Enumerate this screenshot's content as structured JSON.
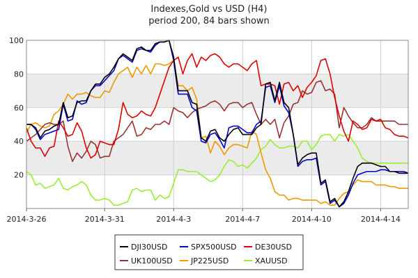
{
  "chart_data": {
    "type": "line",
    "title": "Indexes,Gold vs USD (H4)",
    "subtitle": "period 200, 84 bars shown",
    "ylim": [
      0,
      100
    ],
    "yticks": [
      "20",
      "40",
      "60",
      "80",
      "100"
    ],
    "ytick_values": [
      20,
      40,
      60,
      80,
      100
    ],
    "xticks": [
      {
        "label": "2014-3-26",
        "bar": 0
      },
      {
        "label": "2014-3-31",
        "bar": 17
      },
      {
        "label": "2014-4-3",
        "bar": 32
      },
      {
        "label": "2014-4-7",
        "bar": 47
      },
      {
        "label": "2014-4-10",
        "bar": 62
      },
      {
        "label": "2014-4-14",
        "bar": 77
      }
    ],
    "bars_shown": 84,
    "grid": true,
    "band_color": "#ebebeb",
    "legend_position": "bottom",
    "series": [
      {
        "name": "DJI30USD",
        "color": "#000000",
        "values": [
          50,
          50,
          48,
          42,
          46,
          47,
          49,
          50,
          63,
          54,
          55,
          63,
          64,
          64,
          70,
          74,
          74,
          78,
          80,
          84,
          89,
          92,
          90,
          88,
          95,
          96,
          94,
          94,
          98,
          99,
          99,
          100,
          90,
          70,
          70,
          70,
          63,
          62,
          42,
          40,
          46,
          47,
          42,
          40,
          44,
          47,
          48,
          44,
          44,
          44,
          48,
          50,
          74,
          75,
          64,
          75,
          63,
          60,
          44,
          26,
          30,
          32,
          33,
          33,
          15,
          17,
          4,
          6,
          1,
          4,
          10,
          18,
          25,
          27,
          27,
          27,
          26,
          25,
          25,
          22,
          22,
          21,
          21,
          21
        ]
      },
      {
        "name": "SPX500USD",
        "color": "#0000cc",
        "values": [
          50,
          50,
          47,
          41,
          44,
          45,
          46,
          47,
          62,
          52,
          53,
          64,
          62,
          63,
          70,
          73,
          73,
          76,
          79,
          82,
          89,
          91,
          89,
          87,
          94,
          95,
          94,
          93,
          97,
          99,
          99,
          100,
          88,
          68,
          68,
          68,
          60,
          58,
          40,
          39,
          44,
          45,
          41,
          36,
          48,
          49,
          49,
          47,
          45,
          45,
          50,
          52,
          72,
          73,
          63,
          73,
          61,
          57,
          44,
          25,
          28,
          29,
          29,
          30,
          14,
          16,
          3,
          5,
          1,
          3,
          8,
          15,
          20,
          21,
          22,
          22,
          22,
          23,
          23,
          22,
          22,
          22,
          22,
          21
        ]
      },
      {
        "name": "DE30USD",
        "color": "#dd0000",
        "values": [
          48,
          40,
          36,
          36,
          31,
          36,
          37,
          52,
          48,
          43,
          44,
          51,
          46,
          36,
          30,
          32,
          40,
          39,
          38,
          38,
          47,
          63,
          56,
          54,
          55,
          58,
          56,
          55,
          60,
          68,
          76,
          84,
          88,
          90,
          80,
          88,
          92,
          84,
          90,
          88,
          91,
          92,
          90,
          86,
          84,
          86,
          86,
          84,
          82,
          86,
          88,
          73,
          74,
          74,
          73,
          62,
          74,
          75,
          70,
          73,
          66,
          72,
          75,
          79,
          88,
          89,
          80,
          66,
          55,
          46,
          40,
          52,
          50,
          47,
          48,
          53,
          52,
          53,
          48,
          47,
          44,
          43,
          43,
          42
        ]
      },
      {
        "name": "UK100USD",
        "color": "#993333",
        "values": [
          40,
          42,
          44,
          47,
          50,
          51,
          50,
          50,
          52,
          37,
          28,
          33,
          30,
          34,
          40,
          38,
          30,
          31,
          31,
          40,
          42,
          44,
          48,
          52,
          43,
          44,
          48,
          47,
          50,
          50,
          52,
          50,
          60,
          58,
          57,
          54,
          57,
          59,
          60,
          61,
          63,
          64,
          62,
          58,
          62,
          63,
          63,
          60,
          62,
          63,
          56,
          50,
          53,
          50,
          53,
          42,
          51,
          55,
          62,
          63,
          70,
          68,
          69,
          75,
          76,
          70,
          71,
          68,
          48,
          60,
          55,
          51,
          48,
          48,
          50,
          54,
          52,
          52,
          52,
          52,
          52,
          50,
          50,
          50
        ]
      },
      {
        "name": "JP225USD",
        "color": "#ee9900",
        "values": [
          45,
          50,
          51,
          49,
          48,
          49,
          56,
          58,
          62,
          68,
          65,
          68,
          68,
          69,
          67,
          66,
          66,
          70,
          69,
          75,
          80,
          82,
          84,
          78,
          84,
          80,
          85,
          80,
          86,
          86,
          85,
          86,
          88,
          73,
          73,
          70,
          72,
          65,
          42,
          43,
          33,
          40,
          37,
          32,
          36,
          38,
          38,
          37,
          36,
          46,
          44,
          33,
          23,
          18,
          10,
          8,
          8,
          5,
          6,
          6,
          5,
          5,
          5,
          5,
          3,
          4,
          2,
          2,
          6,
          9,
          10,
          14,
          17,
          16,
          16,
          16,
          14,
          14,
          14,
          13,
          13,
          12,
          12,
          12
        ]
      },
      {
        "name": "XAUUSD",
        "color": "#99ee33",
        "values": [
          22,
          20,
          14,
          15,
          12,
          13,
          14,
          18,
          12,
          11,
          13,
          14,
          16,
          14,
          8,
          5,
          5,
          6,
          5,
          2,
          2,
          3,
          4,
          11,
          12,
          10,
          11,
          11,
          5,
          8,
          6,
          7,
          15,
          23,
          23,
          22,
          22,
          22,
          20,
          18,
          16,
          17,
          20,
          25,
          29,
          28,
          25,
          26,
          24,
          27,
          30,
          35,
          37,
          41,
          38,
          36,
          36,
          37,
          37,
          36,
          40,
          40,
          35,
          38,
          43,
          44,
          44,
          40,
          44,
          43,
          44,
          40,
          36,
          30,
          28,
          27,
          27,
          27,
          27,
          27,
          27,
          27,
          27,
          27
        ]
      }
    ]
  }
}
